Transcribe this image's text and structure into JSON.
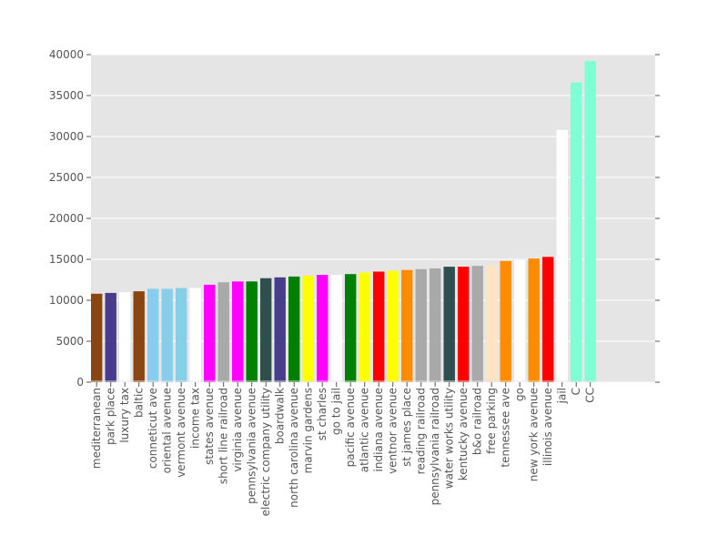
{
  "chart_data": {
    "type": "bar",
    "title": "",
    "xlabel": "",
    "ylabel": "",
    "ylim": [
      0,
      40000
    ],
    "yticks": [
      0,
      5000,
      10000,
      15000,
      20000,
      25000,
      30000,
      35000,
      40000
    ],
    "grid": true,
    "background": "#e5e5e5",
    "categories": [
      "mediterranean",
      "park place",
      "luxury tax",
      "baltic",
      "conneticut ave",
      "oriental avenue",
      "vermont avenue",
      "income tax",
      "states avenue",
      "short line railroad",
      "virginia avenue",
      "pennsylvania avenue",
      "electric company utility",
      "boardwalk",
      "north carolina avenue",
      "marvin gardens",
      "st charles",
      "go to jail",
      "pacific avenue",
      "atlantic avenue",
      "indiana avenue",
      "ventnor avenue",
      "st james place",
      "reading railroad",
      "pennsylvania railroad",
      "water works utility",
      "kentucky avenue",
      "b&o railroad",
      "free parking",
      "tennessee ave",
      "go",
      "new york avenue",
      "illinois avenue",
      "jail",
      "C",
      "CC"
    ],
    "values": [
      10800,
      10900,
      11000,
      11100,
      11400,
      11400,
      11500,
      11500,
      11900,
      12200,
      12300,
      12300,
      12700,
      12800,
      12900,
      13000,
      13100,
      13100,
      13200,
      13400,
      13500,
      13600,
      13700,
      13800,
      13900,
      14100,
      14100,
      14200,
      14300,
      14800,
      14900,
      15100,
      15300,
      30800,
      36600,
      39200
    ],
    "colors": [
      "#8b4513",
      "#483d8b",
      "#ffffff",
      "#8b4513",
      "#87ceeb",
      "#87ceeb",
      "#87ceeb",
      "#ffffff",
      "#ff00ff",
      "#a9a9a9",
      "#ff00ff",
      "#008000",
      "#2f4f4f",
      "#483d8b",
      "#008000",
      "#ffff00",
      "#ff00ff",
      "#ffffff",
      "#008000",
      "#ffff00",
      "#ff0000",
      "#ffff00",
      "#ff8c00",
      "#a9a9a9",
      "#a9a9a9",
      "#2f4f4f",
      "#ff0000",
      "#a9a9a9",
      "#ffe4c4",
      "#ff8c00",
      "#ffffff",
      "#ff8c00",
      "#ff0000",
      "#ffffff",
      "#7fffd4",
      "#7fffd4"
    ]
  }
}
